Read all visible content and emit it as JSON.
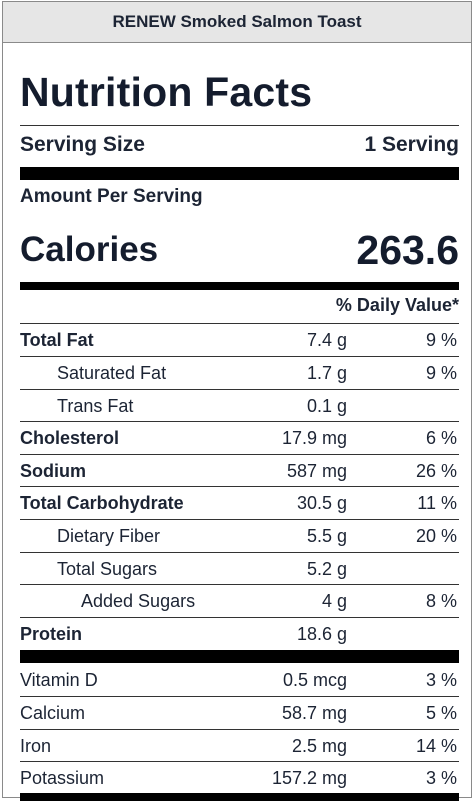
{
  "header": {
    "title": "RENEW Smoked Salmon Toast"
  },
  "label": {
    "title": "Nutrition Facts",
    "serving_size_label": "Serving Size",
    "serving_size_value": "1 Serving",
    "amount_per_serving": "Amount Per Serving",
    "calories_label": "Calories",
    "calories_value": "263.6",
    "daily_value_header": "% Daily Value*"
  },
  "nutrients": [
    {
      "name": "Total Fat",
      "amount": "7.4 g",
      "dv": "9 %"
    },
    {
      "name": "Saturated Fat",
      "amount": "1.7 g",
      "dv": "9 %"
    },
    {
      "name": "Trans Fat",
      "amount": "0.1 g",
      "dv": ""
    },
    {
      "name": "Cholesterol",
      "amount": "17.9 mg",
      "dv": "6 %"
    },
    {
      "name": "Sodium",
      "amount": "587 mg",
      "dv": "26 %"
    },
    {
      "name": "Total Carbohydrate",
      "amount": "30.5 g",
      "dv": "11 %"
    },
    {
      "name": "Dietary Fiber",
      "amount": "5.5 g",
      "dv": "20 %"
    },
    {
      "name": "Total Sugars",
      "amount": "5.2 g",
      "dv": ""
    },
    {
      "name": "Added Sugars",
      "amount": "4 g",
      "dv": "8 %"
    },
    {
      "name": "Protein",
      "amount": "18.6 g",
      "dv": ""
    }
  ],
  "vitamins": [
    {
      "name": "Vitamin D",
      "amount": "0.5 mcg",
      "dv": "3 %"
    },
    {
      "name": "Calcium",
      "amount": "58.7 mg",
      "dv": "5 %"
    },
    {
      "name": "Iron",
      "amount": "2.5 mg",
      "dv": "14 %"
    },
    {
      "name": "Potassium",
      "amount": "157.2 mg",
      "dv": "3 %"
    }
  ]
}
